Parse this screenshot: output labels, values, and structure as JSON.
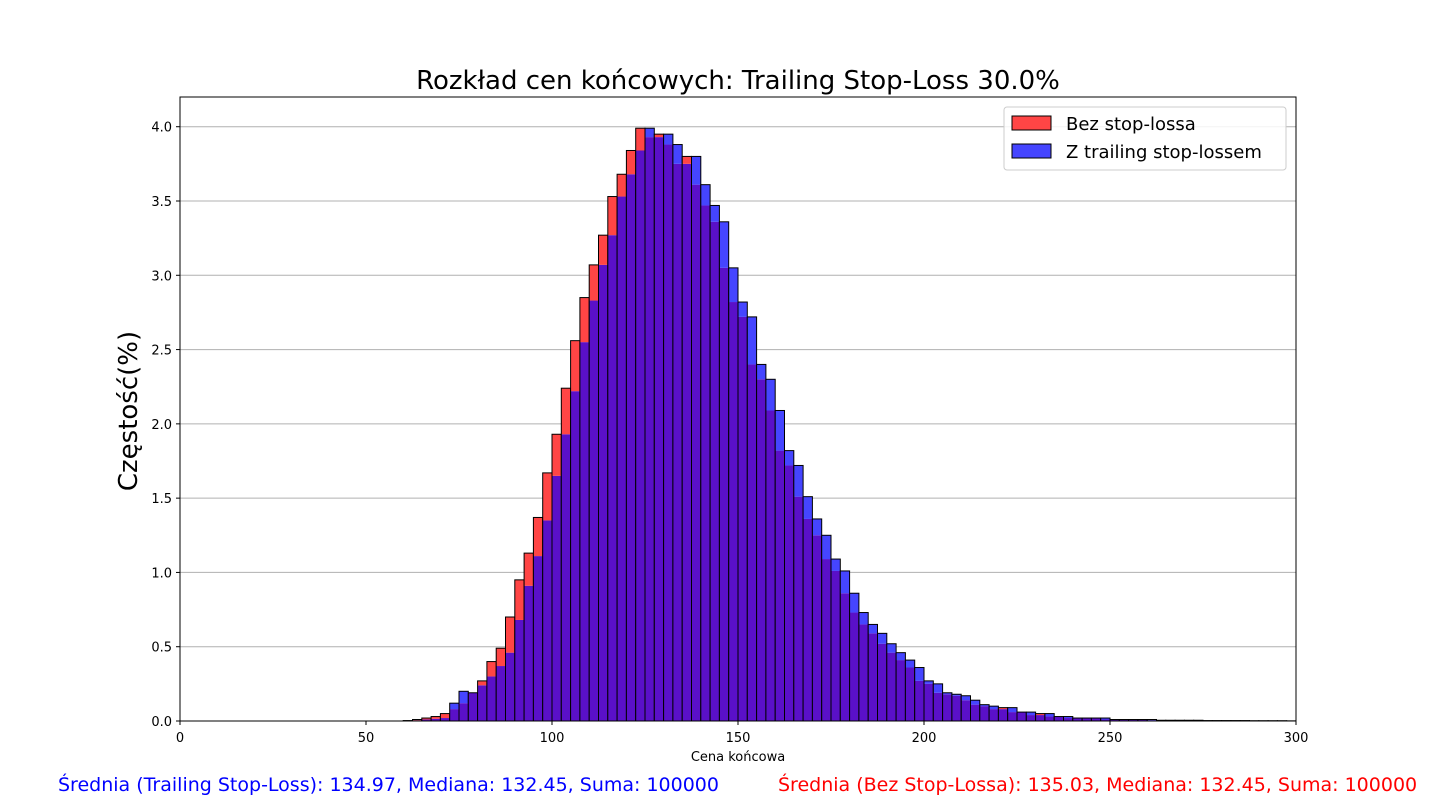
{
  "chart_data": {
    "type": "bar",
    "title": "Rozkład cen końcowych: Trailing Stop-Loss 30.0%",
    "xlabel": "Cena końcowa",
    "ylabel": "Częstość(%)",
    "xlim": [
      0,
      300
    ],
    "ylim": [
      0,
      4.2
    ],
    "x_ticks": [
      "0",
      "50",
      "100",
      "150",
      "200",
      "250",
      "300"
    ],
    "y_ticks": [
      "0.0",
      "0.5",
      "1.0",
      "1.5",
      "2.0",
      "2.5",
      "3.0",
      "3.5",
      "4.0"
    ],
    "grid": "horizontal",
    "legend_position": "top-right",
    "bin_start": 60,
    "bin_width": 2.5,
    "colors": {
      "no_stop": "#ff4545",
      "trailing": "#4545ff",
      "overlap": "#5a10c8",
      "edge": "#000000"
    },
    "series": [
      {
        "name": "Bez stop-lossa",
        "values": [
          0.003,
          0.01,
          0.02,
          0.03,
          0.05,
          0.08,
          0.12,
          0.19,
          0.27,
          0.4,
          0.49,
          0.7,
          0.95,
          1.13,
          1.37,
          1.67,
          1.93,
          2.24,
          2.56,
          2.85,
          3.07,
          3.27,
          3.53,
          3.68,
          3.84,
          3.99,
          3.93,
          3.95,
          3.88,
          3.75,
          3.8,
          3.61,
          3.47,
          3.36,
          3.05,
          2.82,
          2.72,
          2.4,
          2.3,
          2.09,
          1.82,
          1.72,
          1.51,
          1.36,
          1.25,
          1.09,
          1.01,
          0.86,
          0.73,
          0.65,
          0.59,
          0.52,
          0.46,
          0.41,
          0.36,
          0.27,
          0.25,
          0.19,
          0.18,
          0.17,
          0.14,
          0.11,
          0.1,
          0.08,
          0.09,
          0.06,
          0.06,
          0.04,
          0.05,
          0.03,
          0.03,
          0.02,
          0.02,
          0.02,
          0.02,
          0.01,
          0.01,
          0.01,
          0.01,
          0.01,
          0.005,
          0.005,
          0.005,
          0.005,
          0.005,
          0.003,
          0.003,
          0.003,
          0.003,
          0.003,
          0.002,
          0.002,
          0.002,
          0.002,
          0.002,
          0.001
        ]
      },
      {
        "name": "Z trailing stop-lossem",
        "values": [
          0.002,
          0.005,
          0.01,
          0.015,
          0.02,
          0.12,
          0.2,
          0.19,
          0.24,
          0.3,
          0.37,
          0.46,
          0.68,
          0.91,
          1.11,
          1.35,
          1.65,
          1.93,
          2.22,
          2.55,
          2.83,
          3.07,
          3.27,
          3.53,
          3.68,
          3.84,
          3.99,
          3.93,
          3.95,
          3.88,
          3.75,
          3.8,
          3.61,
          3.47,
          3.36,
          3.05,
          2.82,
          2.72,
          2.4,
          2.3,
          2.09,
          1.82,
          1.72,
          1.51,
          1.36,
          1.25,
          1.09,
          1.01,
          0.86,
          0.73,
          0.65,
          0.59,
          0.52,
          0.46,
          0.41,
          0.36,
          0.27,
          0.25,
          0.19,
          0.18,
          0.17,
          0.14,
          0.11,
          0.1,
          0.08,
          0.09,
          0.06,
          0.06,
          0.04,
          0.05,
          0.03,
          0.03,
          0.02,
          0.02,
          0.02,
          0.02,
          0.01,
          0.01,
          0.01,
          0.01,
          0.01,
          0.005,
          0.005,
          0.005,
          0.005,
          0.005,
          0.003,
          0.003,
          0.003,
          0.003,
          0.003,
          0.002,
          0.002,
          0.002,
          0.002,
          0.001
        ]
      }
    ]
  },
  "stats": {
    "trailing": "Średnia (Trailing Stop-Loss): 134.97, Mediana: 132.45, Suma: 100000",
    "no_stop": "Średnia (Bez Stop-Lossa): 135.03, Mediana: 132.45, Suma: 100000"
  }
}
